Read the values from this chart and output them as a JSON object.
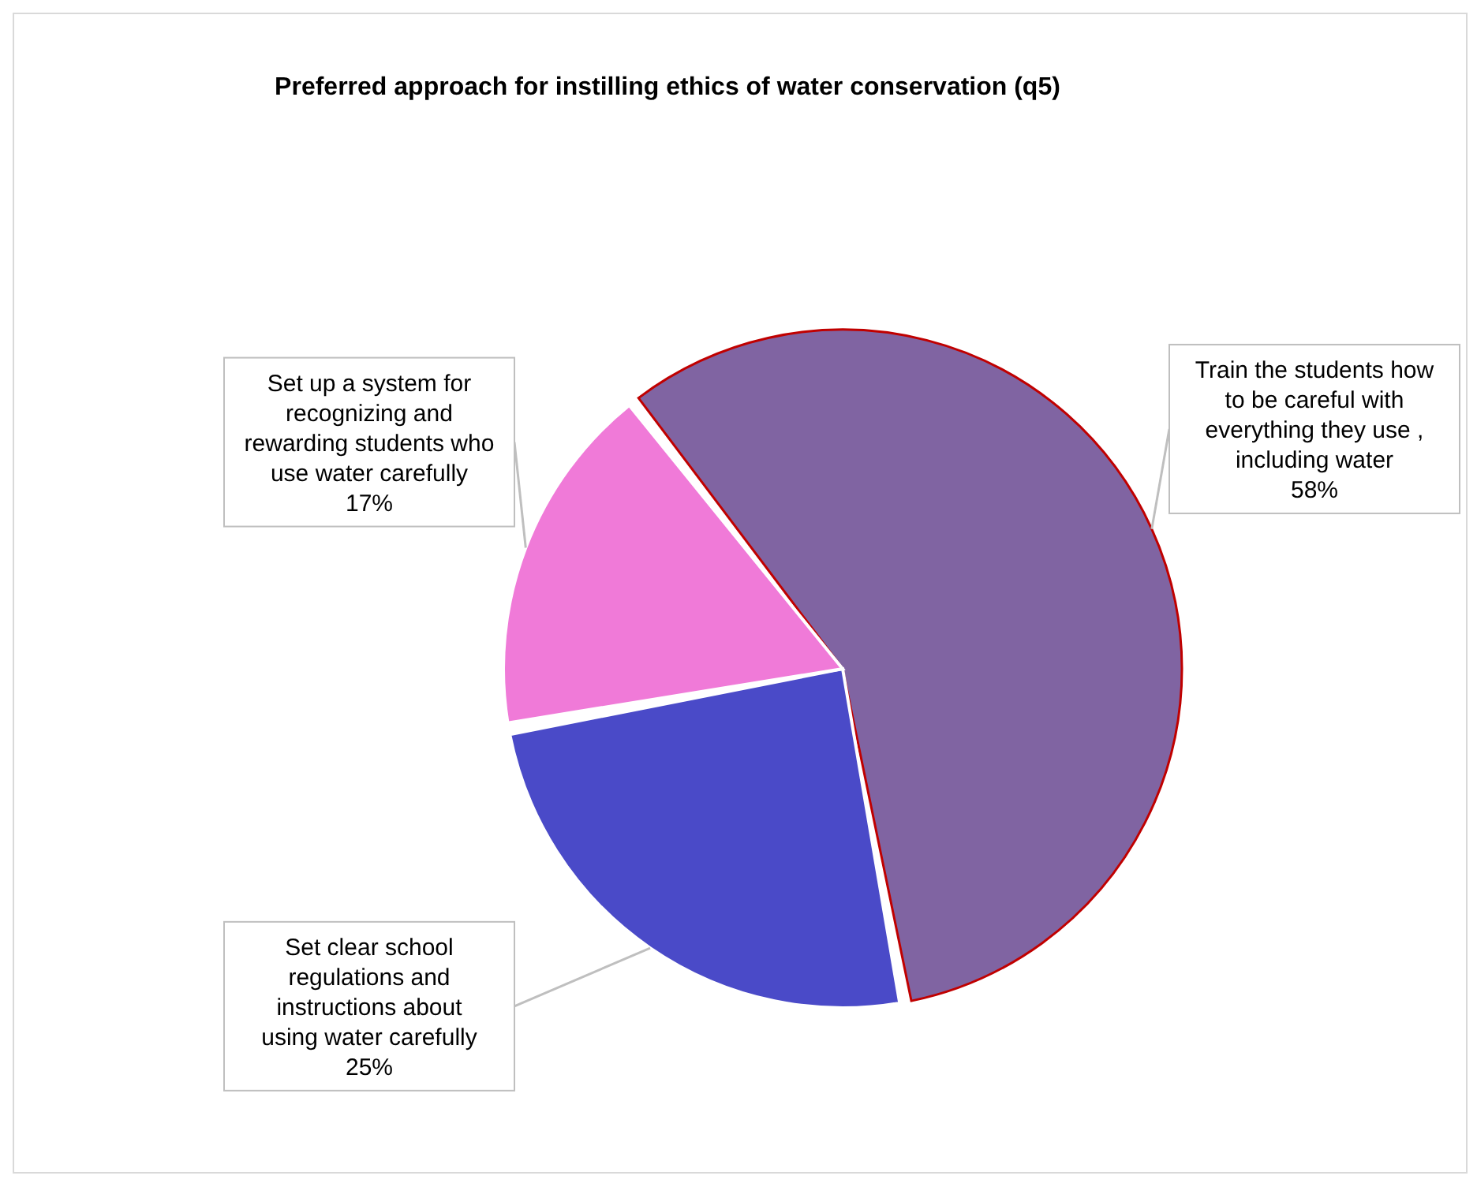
{
  "chart_data": {
    "type": "pie",
    "title": "Preferred approach for instilling ethics of water conservation (q5)",
    "categories": [
      "Train the students how to be careful with everything they use , including water",
      "Set clear school regulations and instructions about using water carefully",
      "Set up a system for recognizing and rewarding students who use water carefully"
    ],
    "values": [
      58,
      25,
      17
    ],
    "value_labels": [
      "58%",
      "25%",
      "17%"
    ],
    "colors": [
      "#8064a2",
      "#4a4ac8",
      "#f07ad8"
    ],
    "legend": false
  }
}
